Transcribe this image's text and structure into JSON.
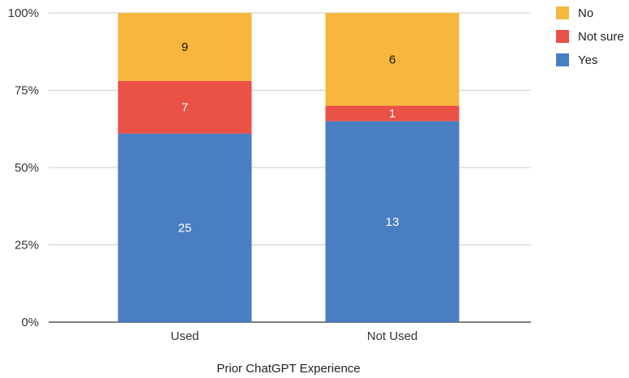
{
  "chart_data": {
    "type": "bar",
    "stacked": "percent",
    "categories": [
      "Used",
      "Not Used"
    ],
    "series": [
      {
        "name": "Yes",
        "values": [
          25,
          13
        ],
        "color": "#4a7ec3",
        "label_color": "#ffffff"
      },
      {
        "name": "Not sure",
        "values": [
          7,
          1
        ],
        "color": "#ea5147",
        "label_color": "#ffffff"
      },
      {
        "name": "No",
        "values": [
          9,
          6
        ],
        "color": "#f6b73c",
        "label_color": "#111111"
      }
    ],
    "title": "",
    "xlabel": "Prior ChatGPT Experience",
    "ylabel": "",
    "yticks": [
      "0%",
      "25%",
      "50%",
      "75%",
      "100%"
    ],
    "ylim": [
      0,
      100
    ],
    "grid": true,
    "legend_position": "top-right",
    "legend_order": [
      "No",
      "Not sure",
      "Yes"
    ]
  }
}
